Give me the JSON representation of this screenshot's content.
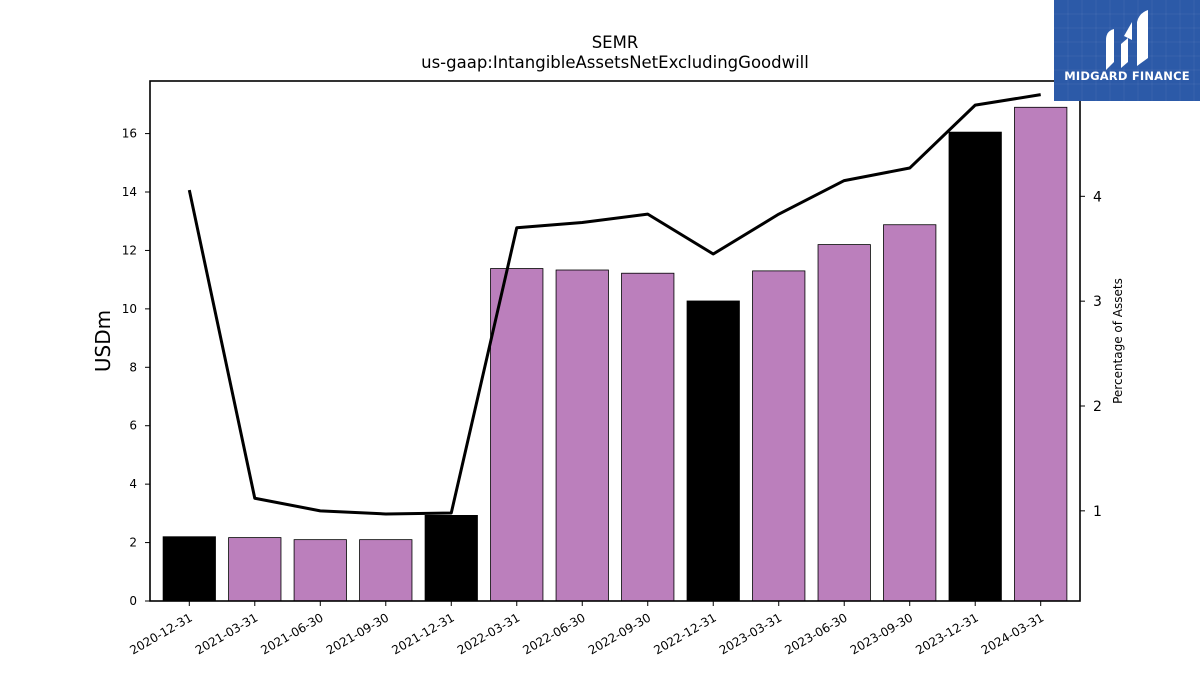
{
  "logo": {
    "brand_text": "MIDGARD FINANCE",
    "background_color": "#2c5aa8"
  },
  "chart_data": {
    "type": "bar",
    "title": "SEMR",
    "subtitle": "us-gaap:IntangibleAssetsNetExcludingGoodwill",
    "ylabel": "USDm",
    "y2label": "Percentage of Assets",
    "categories": [
      "2020-12-31",
      "2021-03-31",
      "2021-06-30",
      "2021-09-30",
      "2021-12-31",
      "2022-03-31",
      "2022-06-30",
      "2022-09-30",
      "2022-12-31",
      "2023-03-31",
      "2023-06-30",
      "2023-09-30",
      "2023-12-31",
      "2024-03-31"
    ],
    "series": [
      {
        "type": "bar",
        "values": [
          2.2,
          2.17,
          2.1,
          2.1,
          2.93,
          11.38,
          11.33,
          11.22,
          10.27,
          11.3,
          12.2,
          12.88,
          16.05,
          16.9
        ],
        "colors": [
          "#000000",
          "#bb7fbc",
          "#bb7fbc",
          "#bb7fbc",
          "#000000",
          "#bb7fbc",
          "#bb7fbc",
          "#bb7fbc",
          "#000000",
          "#bb7fbc",
          "#bb7fbc",
          "#bb7fbc",
          "#000000",
          "#bb7fbc"
        ],
        "axis": "left"
      },
      {
        "type": "line",
        "values": [
          4.06,
          1.12,
          1.0,
          0.97,
          0.98,
          3.7,
          3.75,
          3.83,
          3.45,
          3.83,
          4.15,
          4.27,
          4.87,
          4.97
        ],
        "color": "#000000",
        "axis": "right"
      }
    ],
    "ylim": [
      0,
      17.8
    ],
    "yticks": [
      0,
      2,
      4,
      6,
      8,
      10,
      12,
      14,
      16
    ],
    "y2lim": [
      0.14,
      5.1
    ],
    "y2ticks": [
      1,
      2,
      3,
      4,
      5
    ],
    "grid": false,
    "legend": "none"
  }
}
